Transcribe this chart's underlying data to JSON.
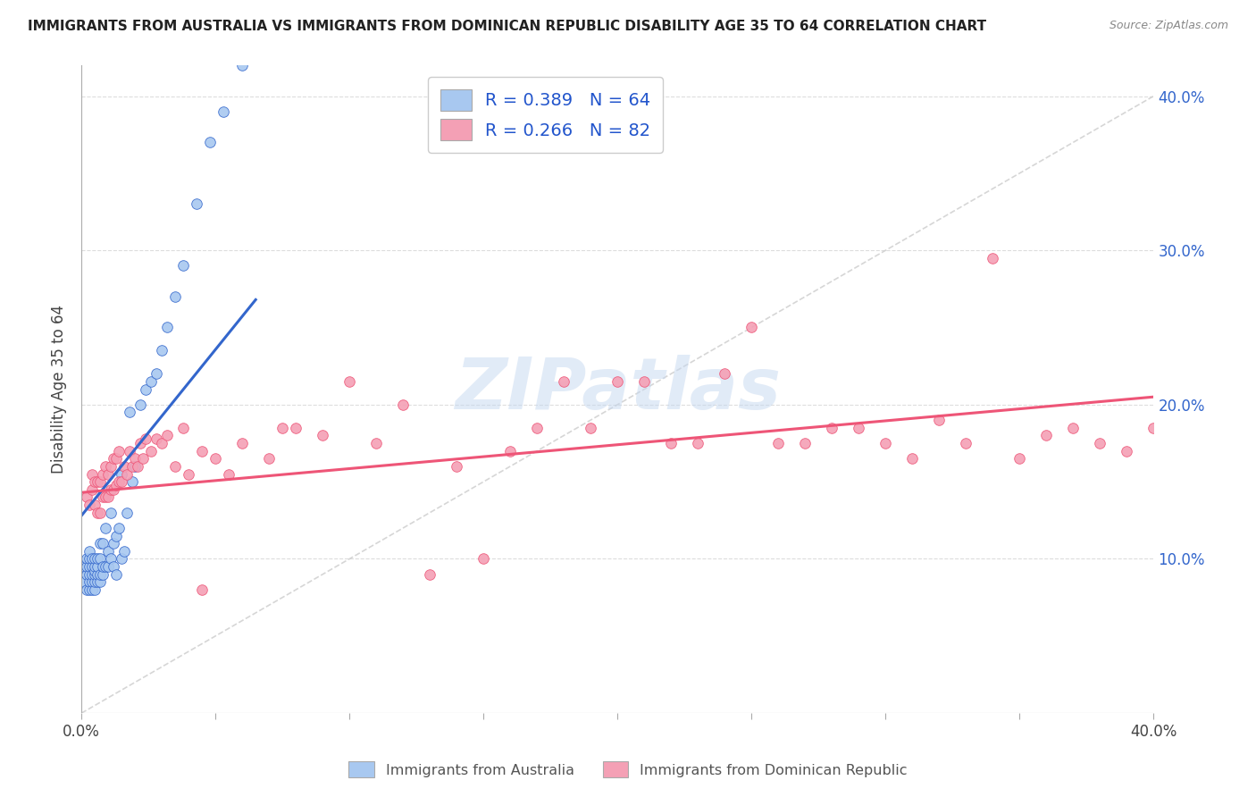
{
  "title": "IMMIGRANTS FROM AUSTRALIA VS IMMIGRANTS FROM DOMINICAN REPUBLIC DISABILITY AGE 35 TO 64 CORRELATION CHART",
  "source": "Source: ZipAtlas.com",
  "ylabel": "Disability Age 35 to 64",
  "legend_label1": "R = 0.389   N = 64",
  "legend_label2": "R = 0.266   N = 82",
  "legend_label1_short": "Immigrants from Australia",
  "legend_label2_short": "Immigrants from Dominican Republic",
  "color_aus": "#a8c8f0",
  "color_dom": "#f4a0b5",
  "color_aus_line": "#3366cc",
  "color_dom_line": "#ee5577",
  "color_diag": "#cccccc",
  "xlim": [
    0.0,
    0.4
  ],
  "ylim": [
    0.0,
    0.42
  ],
  "yticks": [
    0.1,
    0.2,
    0.3,
    0.4
  ],
  "xtick_positions": [
    0.0,
    0.05,
    0.1,
    0.15,
    0.2,
    0.25,
    0.3,
    0.35,
    0.4
  ],
  "watermark": "ZIPatlas",
  "aus_scatter_x": [
    0.001,
    0.001,
    0.002,
    0.002,
    0.002,
    0.002,
    0.003,
    0.003,
    0.003,
    0.003,
    0.003,
    0.003,
    0.004,
    0.004,
    0.004,
    0.004,
    0.004,
    0.005,
    0.005,
    0.005,
    0.005,
    0.005,
    0.005,
    0.006,
    0.006,
    0.006,
    0.006,
    0.007,
    0.007,
    0.007,
    0.007,
    0.008,
    0.008,
    0.008,
    0.009,
    0.009,
    0.01,
    0.01,
    0.011,
    0.011,
    0.012,
    0.012,
    0.013,
    0.013,
    0.014,
    0.015,
    0.015,
    0.016,
    0.017,
    0.018,
    0.019,
    0.02,
    0.022,
    0.024,
    0.026,
    0.028,
    0.03,
    0.032,
    0.035,
    0.038,
    0.043,
    0.048,
    0.053,
    0.06
  ],
  "aus_scatter_y": [
    0.085,
    0.095,
    0.08,
    0.09,
    0.095,
    0.1,
    0.08,
    0.085,
    0.09,
    0.095,
    0.1,
    0.105,
    0.08,
    0.085,
    0.09,
    0.095,
    0.1,
    0.08,
    0.085,
    0.09,
    0.092,
    0.095,
    0.1,
    0.085,
    0.09,
    0.095,
    0.1,
    0.085,
    0.09,
    0.1,
    0.11,
    0.09,
    0.095,
    0.11,
    0.095,
    0.12,
    0.095,
    0.105,
    0.1,
    0.13,
    0.095,
    0.11,
    0.09,
    0.115,
    0.12,
    0.1,
    0.155,
    0.105,
    0.13,
    0.195,
    0.15,
    0.16,
    0.2,
    0.21,
    0.215,
    0.22,
    0.235,
    0.25,
    0.27,
    0.29,
    0.33,
    0.37,
    0.39,
    0.42
  ],
  "dom_scatter_x": [
    0.002,
    0.003,
    0.004,
    0.004,
    0.005,
    0.005,
    0.006,
    0.006,
    0.007,
    0.007,
    0.008,
    0.008,
    0.009,
    0.009,
    0.01,
    0.01,
    0.011,
    0.011,
    0.012,
    0.012,
    0.013,
    0.013,
    0.014,
    0.014,
    0.015,
    0.016,
    0.017,
    0.018,
    0.019,
    0.02,
    0.021,
    0.022,
    0.023,
    0.024,
    0.026,
    0.028,
    0.03,
    0.032,
    0.035,
    0.038,
    0.04,
    0.045,
    0.05,
    0.055,
    0.06,
    0.07,
    0.08,
    0.09,
    0.1,
    0.11,
    0.12,
    0.14,
    0.16,
    0.18,
    0.2,
    0.22,
    0.24,
    0.26,
    0.28,
    0.3,
    0.32,
    0.34,
    0.36,
    0.38,
    0.4,
    0.25,
    0.27,
    0.35,
    0.15,
    0.13,
    0.17,
    0.19,
    0.21,
    0.23,
    0.31,
    0.29,
    0.33,
    0.37,
    0.39,
    0.41,
    0.045,
    0.075
  ],
  "dom_scatter_y": [
    0.14,
    0.135,
    0.145,
    0.155,
    0.135,
    0.15,
    0.13,
    0.15,
    0.13,
    0.15,
    0.14,
    0.155,
    0.14,
    0.16,
    0.14,
    0.155,
    0.145,
    0.16,
    0.145,
    0.165,
    0.148,
    0.165,
    0.15,
    0.17,
    0.15,
    0.16,
    0.155,
    0.17,
    0.16,
    0.165,
    0.16,
    0.175,
    0.165,
    0.178,
    0.17,
    0.178,
    0.175,
    0.18,
    0.16,
    0.185,
    0.155,
    0.17,
    0.165,
    0.155,
    0.175,
    0.165,
    0.185,
    0.18,
    0.215,
    0.175,
    0.2,
    0.16,
    0.17,
    0.215,
    0.215,
    0.175,
    0.22,
    0.175,
    0.185,
    0.175,
    0.19,
    0.295,
    0.18,
    0.175,
    0.185,
    0.25,
    0.175,
    0.165,
    0.1,
    0.09,
    0.185,
    0.185,
    0.215,
    0.175,
    0.165,
    0.185,
    0.175,
    0.185,
    0.17,
    0.18,
    0.08,
    0.185
  ],
  "aus_line_x": [
    0.0,
    0.065
  ],
  "aus_line_y": [
    0.128,
    0.268
  ],
  "dom_line_x": [
    0.0,
    0.4
  ],
  "dom_line_y": [
    0.143,
    0.205
  ],
  "diag_line_x": [
    0.0,
    0.4
  ],
  "diag_line_y": [
    0.0,
    0.4
  ]
}
